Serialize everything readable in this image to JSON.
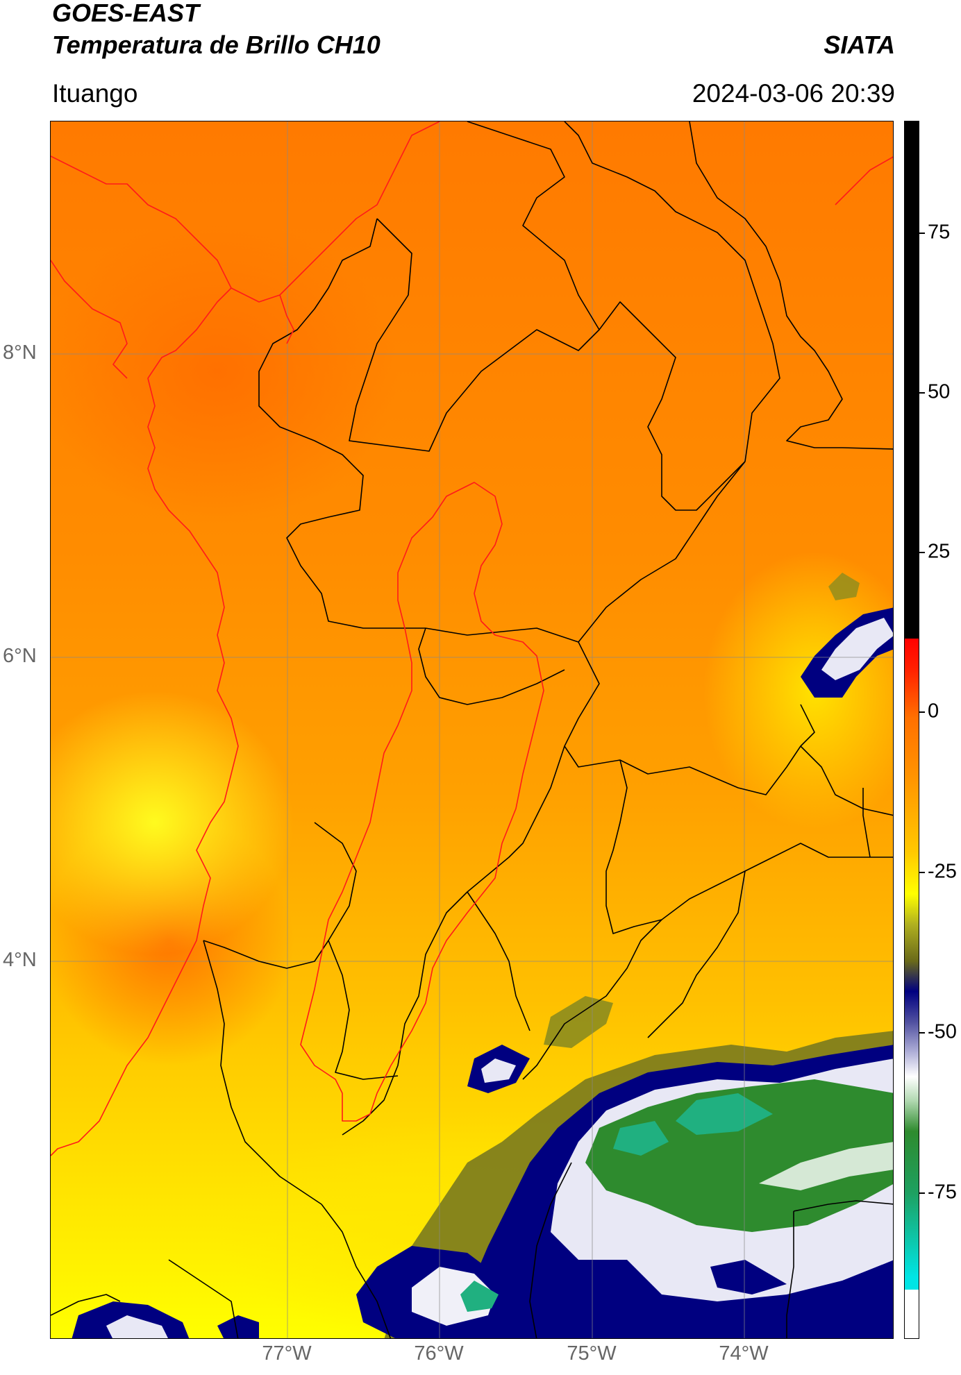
{
  "header": {
    "satellite": "GOES-EAST",
    "product": "Temperatura de Brillo CH10",
    "organization": "SIATA",
    "region": "Ituango",
    "datetime": "2024-03-06 20:39"
  },
  "map": {
    "lat_labels": [
      "8°N",
      "6°N",
      "4°N"
    ],
    "lon_labels": [
      "77°W",
      "76°W",
      "75°W",
      "74°W"
    ],
    "border_colors": {
      "coastline": "#ff1a1a",
      "departments": "#000000",
      "basin": "#ff1a1a"
    }
  },
  "colorbar": {
    "ticks": [
      "75",
      "50",
      "25",
      "0",
      "-25",
      "-50",
      "-75"
    ],
    "range": [
      -85,
      92
    ],
    "colors": {
      "black": "#000000",
      "red": "#ff0000",
      "orange": "#ff8c00",
      "yellow": "#ffff00",
      "olive": "#8c8c1e",
      "navy": "#000080",
      "white": "#ffffff",
      "green": "#2e8b2e",
      "cyan": "#00e5e5"
    }
  }
}
